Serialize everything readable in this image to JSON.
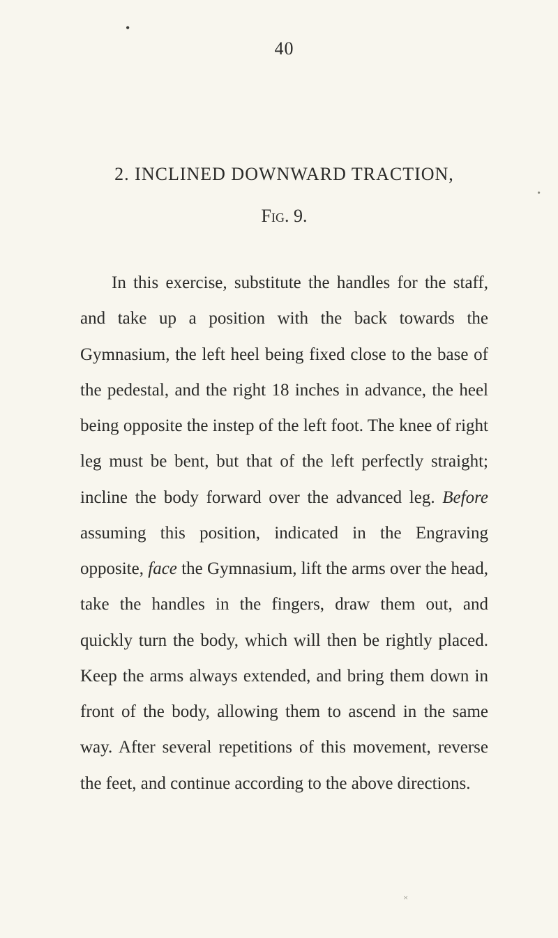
{
  "page": {
    "number": "40",
    "title": "2. INCLINED DOWNWARD TRACTION,",
    "figure_label": "Fig. 9.",
    "body": "In this exercise, substitute the handles for the staff, and take up a position with the back towards the Gymnasium, the left heel being fixed close to the base of the pedestal, and the right 18 inches in advance, the heel being opposite the instep of the left foot. The knee of right leg must be bent, but that of the left perfectly straight; incline the body forward over the advanced leg. ",
    "before_word": "Before",
    "body2": " assuming this position, indicated in the Engraving opposite, ",
    "face_word": "face",
    "body3": " the Gymnasium, lift the arms over the head, take the handles in the fingers, draw them out, and quickly turn the body, which will then be rightly placed. Keep the arms always extended, and bring them down in front of the body, allowing them to ascend in the same way. After several repetitions of this movement, reverse the feet, and continue according to the above directions."
  },
  "colors": {
    "background": "#f8f6ee",
    "text": "#2a2a28"
  }
}
